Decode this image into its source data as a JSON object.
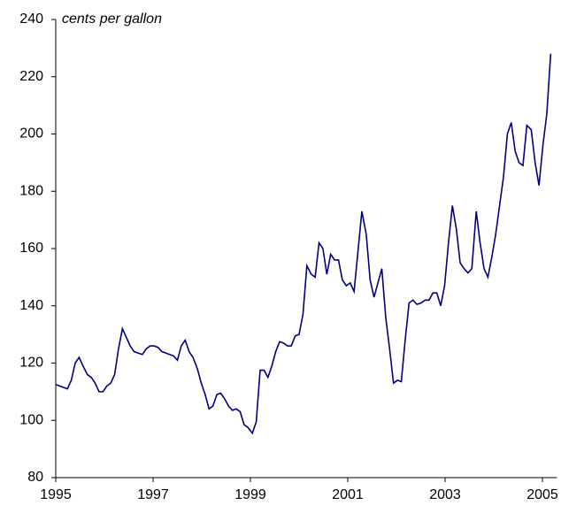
{
  "chart_data": {
    "type": "line",
    "title": "cents per gallon",
    "x": [
      1995.0,
      1995.08,
      1995.16,
      1995.24,
      1995.32,
      1995.4,
      1995.48,
      1995.56,
      1995.65,
      1995.73,
      1995.81,
      1995.89,
      1995.97,
      1996.05,
      1996.13,
      1996.21,
      1996.29,
      1996.37,
      1996.45,
      1996.53,
      1996.61,
      1996.69,
      1996.78,
      1996.86,
      1996.94,
      1997.02,
      1997.1,
      1997.18,
      1997.26,
      1997.34,
      1997.42,
      1997.5,
      1997.58,
      1997.66,
      1997.74,
      1997.82,
      1997.91,
      1997.99,
      1998.07,
      1998.15,
      1998.23,
      1998.31,
      1998.39,
      1998.47,
      1998.55,
      1998.63,
      1998.71,
      1998.79,
      1998.87,
      1998.95,
      1999.04,
      1999.12,
      1999.2,
      1999.28,
      1999.36,
      1999.44,
      1999.52,
      1999.6,
      1999.68,
      1999.76,
      1999.84,
      1999.92,
      2000.0,
      2000.08,
      2000.16,
      2000.25,
      2000.33,
      2000.41,
      2000.49,
      2000.57,
      2000.65,
      2000.73,
      2000.81,
      2000.89,
      2000.97,
      2001.05,
      2001.13,
      2001.21,
      2001.29,
      2001.38,
      2001.46,
      2001.54,
      2001.62,
      2001.7,
      2001.78,
      2001.86,
      2001.94,
      2002.02,
      2002.1,
      2002.18,
      2002.26,
      2002.34,
      2002.42,
      2002.51,
      2002.59,
      2002.67,
      2002.75,
      2002.83,
      2002.91,
      2002.99,
      2003.07,
      2003.15,
      2003.23,
      2003.31,
      2003.39,
      2003.47,
      2003.55,
      2003.64,
      2003.72,
      2003.8,
      2003.88,
      2003.96,
      2004.04,
      2004.12,
      2004.2,
      2004.28,
      2004.36,
      2004.44,
      2004.52,
      2004.6,
      2004.68,
      2004.77,
      2004.85,
      2004.93,
      2005.01,
      2005.09,
      2005.17
    ],
    "series": [
      {
        "color": "#000080",
        "values": [
          112.5,
          112,
          111.5,
          111,
          114,
          120,
          122,
          119,
          116,
          115,
          113,
          110,
          110,
          112,
          113,
          116,
          125,
          132,
          129,
          126,
          124,
          123.5,
          123,
          125,
          126,
          126,
          125.5,
          124,
          123.5,
          123,
          122.5,
          121,
          126,
          128,
          124,
          122,
          118,
          113,
          109,
          104,
          105,
          109,
          109.5,
          107.5,
          105,
          103.5,
          104,
          103,
          98.5,
          97.5,
          95.5,
          99.5,
          117.5,
          117.5,
          115,
          119,
          124,
          127.5,
          127,
          126,
          126,
          129.5,
          130,
          137,
          154,
          151,
          150,
          162,
          160,
          151,
          158,
          156,
          156,
          149,
          147,
          148,
          145,
          159,
          173,
          165,
          149,
          143,
          148,
          153,
          136,
          125,
          113,
          114,
          113.5,
          128,
          141,
          142,
          140.5,
          141,
          142,
          142,
          144.5,
          144.5,
          140,
          147,
          162,
          175,
          167,
          155,
          153,
          151.5,
          153,
          173,
          162,
          153,
          150,
          157,
          165,
          175,
          185,
          200,
          204,
          194,
          190,
          189,
          203,
          201.5,
          190,
          182,
          196,
          207,
          228
        ]
      }
    ],
    "xlim": [
      1995,
      2005.3
    ],
    "xticks": [
      1995,
      1997,
      1999,
      2001,
      2003,
      2005
    ],
    "ylim": [
      80,
      240
    ],
    "yticks": [
      80,
      100,
      120,
      140,
      160,
      180,
      200,
      220,
      240
    ]
  }
}
